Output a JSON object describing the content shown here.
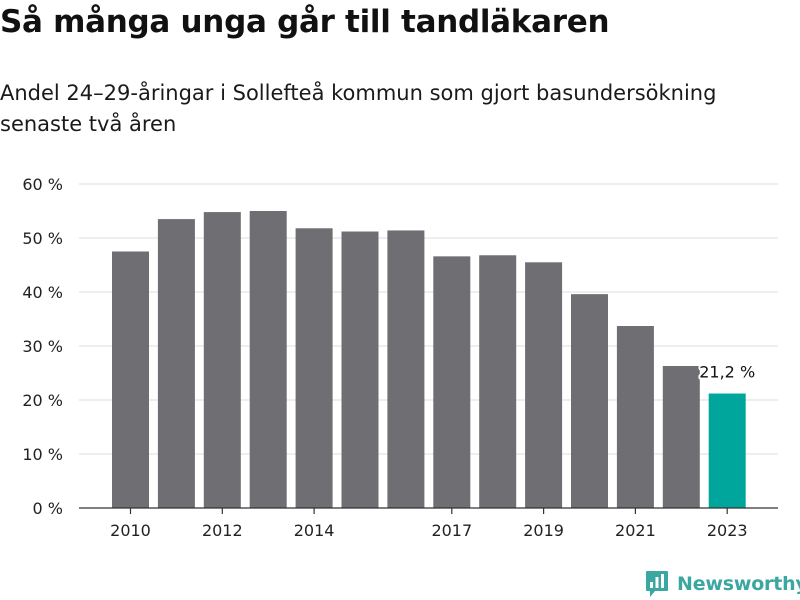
{
  "title": "Så många unga går till tandläkaren",
  "subtitle": "Andel 24–29-åringar i Sollefteå kommun som gjort basundersökning senaste två åren",
  "brand": {
    "name": "Newsworthy",
    "color": "#3aa7a0",
    "icon": "newsworthy-chart-bubble-icon"
  },
  "chart_data": {
    "type": "bar",
    "categories": [
      "2010",
      "2011",
      "2012",
      "2013",
      "2014",
      "2015",
      "2016",
      "2017",
      "2018",
      "2019",
      "2020",
      "2021",
      "2022",
      "2023"
    ],
    "tick_labels": [
      "2010",
      "",
      "2012",
      "",
      "2014",
      "",
      "",
      "2017",
      "",
      "2019",
      "",
      "2021",
      "",
      "2023"
    ],
    "values": [
      47.5,
      53.5,
      54.8,
      55.0,
      51.8,
      51.2,
      51.4,
      46.6,
      46.8,
      45.5,
      39.6,
      33.7,
      26.3,
      21.2
    ],
    "ylim": [
      0,
      60
    ],
    "yticks": [
      0,
      10,
      20,
      30,
      40,
      50,
      60
    ],
    "ytick_labels": [
      "0 %",
      "10 %",
      "20 %",
      "30 %",
      "40 %",
      "50 %",
      "60 %"
    ],
    "xlabel": "",
    "ylabel": "",
    "grid": true,
    "colors": {
      "bar": "#6e6e73",
      "highlight": "#00a59c",
      "grid": "#dcdcdc",
      "axis": "#333333"
    },
    "highlight_index": 13,
    "data_labels": [
      {
        "index": 13,
        "text": "21,2 %"
      }
    ]
  }
}
